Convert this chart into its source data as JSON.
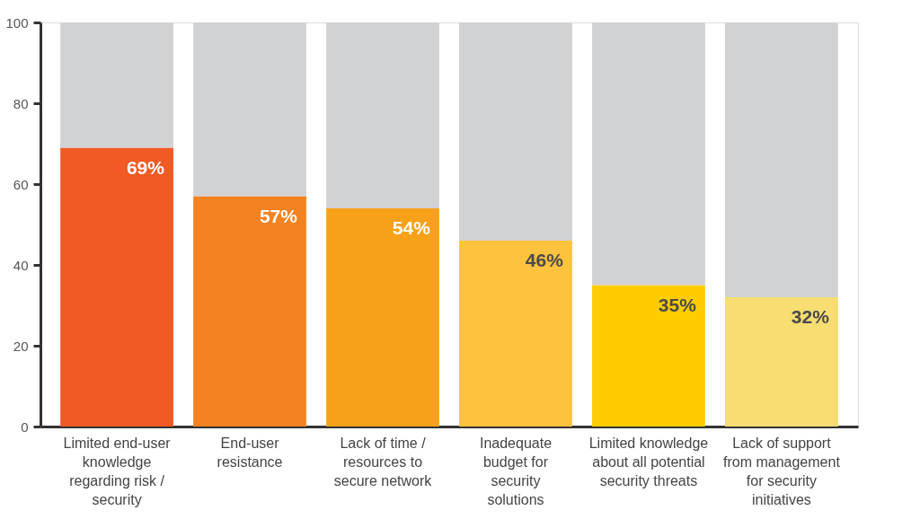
{
  "chart_data": {
    "type": "bar",
    "stacked": true,
    "categories": [
      "Limited end-user\nknowledge\nregarding risk /\nsecurity",
      "End-user\nresistance",
      "Lack of time /\nresources to\nsecure network",
      "Inadequate\nbudget for\nsecurity\nsolutions",
      "Limited knowledge\nabout all potential\nsecurity threats",
      "Lack of support\nfrom management\nfor security\ninitiatives"
    ],
    "series": [
      {
        "colors": [
          "#f15a24",
          "#f58220",
          "#f7a11a",
          "#fdc23e",
          "#ffcc00",
          "#f7dd72"
        ],
        "values": [
          69,
          57,
          54,
          46,
          35,
          32
        ],
        "value_labels": [
          "69%",
          "57%",
          "54%",
          "46%",
          "35%",
          "32%"
        ]
      },
      {
        "color": "#d1d2d4",
        "values": [
          31,
          43,
          46,
          54,
          65,
          68
        ]
      }
    ],
    "ylim": [
      0,
      100
    ],
    "yticks": [
      0,
      20,
      40,
      60,
      80,
      100
    ],
    "grid": false
  }
}
